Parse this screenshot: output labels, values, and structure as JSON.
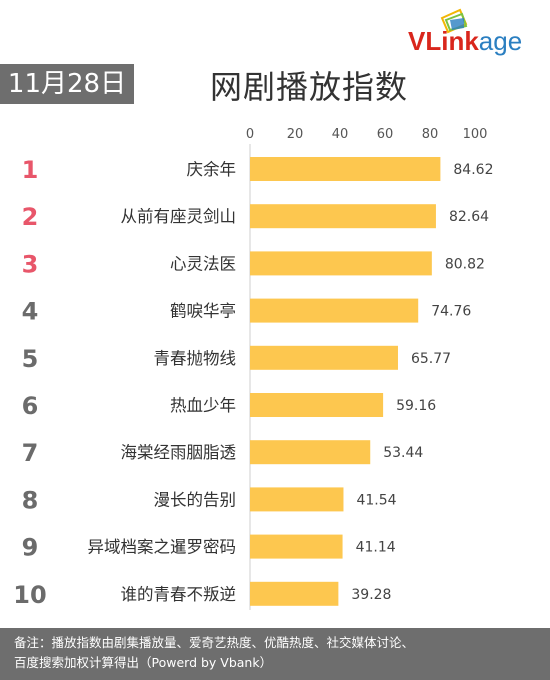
{
  "header": {
    "date": "11月28日",
    "title": "网剧播放指数",
    "brand": {
      "v": "V",
      "link": "Link",
      "age": "age"
    }
  },
  "colors": {
    "bar": "#fdc74f",
    "rank_top": "#e8566a",
    "rank_other": "#6b6b6b",
    "badge": "#6e6e6e"
  },
  "chart_data": {
    "type": "bar",
    "orientation": "horizontal",
    "title": "网剧播放指数",
    "categories": [
      "庆余年",
      "从前有座灵剑山",
      "心灵法医",
      "鹤唳华亭",
      "青春抛物线",
      "热血少年",
      "海棠经雨胭脂透",
      "漫长的告别",
      "异域档案之暹罗密码",
      "谁的青春不叛逆"
    ],
    "ranks": [
      "1",
      "2",
      "3",
      "4",
      "5",
      "6",
      "7",
      "8",
      "9",
      "10"
    ],
    "values": [
      84.62,
      82.64,
      80.82,
      74.76,
      65.77,
      59.16,
      53.44,
      41.54,
      41.14,
      39.28
    ],
    "value_labels": [
      "84.62",
      "82.64",
      "80.82",
      "74.76",
      "65.77",
      "59.16",
      "53.44",
      "41.54",
      "41.14",
      "39.28"
    ],
    "xlim": [
      0,
      100
    ],
    "xticks": [
      "0",
      "20",
      "40",
      "60",
      "80",
      "100"
    ],
    "tick_position": "top",
    "grid": false
  },
  "footer": {
    "line1": "备注：播放指数由剧集播放量、爱奇艺热度、优酷热度、社交媒体讨论、",
    "line2": "百度搜索加权计算得出（Powerd by Vbank）"
  }
}
